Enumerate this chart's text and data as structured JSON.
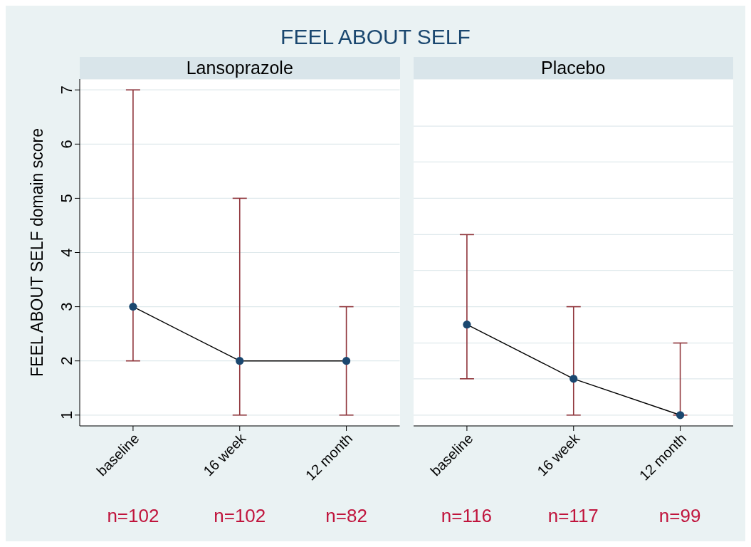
{
  "chart_data": [
    {
      "type": "line",
      "title": "FEEL ABOUT SELF",
      "subtitle": "Lansoprazole",
      "ylabel": "FEEL ABOUT SELF domain score",
      "categories": [
        "baseline",
        "16 week",
        "12 month"
      ],
      "ylim": [
        0.8,
        7.2
      ],
      "yticks": [
        1,
        2,
        3,
        4,
        5,
        6,
        7
      ],
      "grid": "y",
      "series": [
        {
          "color": "#000000",
          "values": [
            3,
            2,
            2
          ]
        },
        {
          "type": "scatter",
          "color": "#1a476f",
          "marker": "circle",
          "values": [
            3,
            2,
            2
          ],
          "errors": [
            [
              2,
              7
            ],
            [
              1,
              5
            ],
            [
              1,
              3
            ]
          ]
        }
      ],
      "annotations": [
        "n=102",
        "n=102",
        "n=82"
      ]
    },
    {
      "type": "line",
      "subtitle": "Placebo",
      "categories": [
        "baseline",
        "16 week",
        "12 month"
      ],
      "ylim": [
        0.8,
        7.2
      ],
      "yticks": [
        {
          "value": 1,
          "label": null
        },
        {
          "value": 1.67,
          "label": null
        },
        {
          "value": 2.33,
          "label": null
        },
        {
          "value": 3,
          "label": null
        },
        {
          "value": 3.67,
          "label": null
        },
        {
          "value": 4.33,
          "label": null
        },
        {
          "value": 5,
          "label": null
        },
        {
          "value": 5.67,
          "label": null
        },
        {
          "value": 6.33,
          "label": null
        }
      ],
      "grid": "y",
      "tick_labels": "x",
      "series": [
        {
          "color": "#000000",
          "values": [
            2.67,
            1.67,
            1
          ]
        },
        {
          "type": "scatter",
          "color": "#1a476f",
          "marker": "circle",
          "values": [
            2.67,
            1.67,
            1
          ],
          "errors": [
            [
              1.67,
              4.33
            ],
            [
              1,
              3
            ],
            [
              1,
              2.33
            ]
          ]
        }
      ],
      "annotations": [
        "n=116",
        "n=117",
        "n=99"
      ]
    }
  ]
}
